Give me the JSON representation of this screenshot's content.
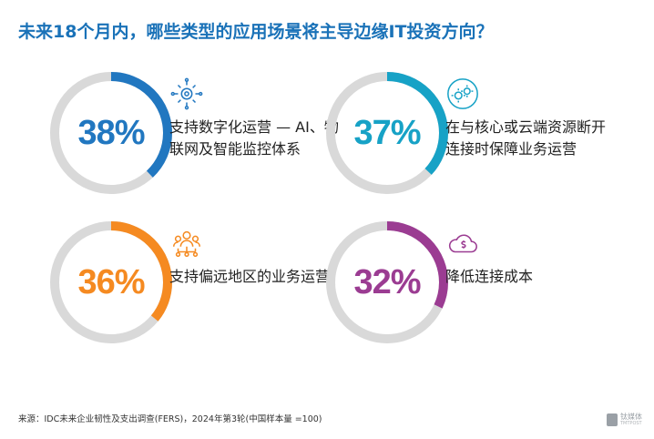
{
  "title": "未来18个月内，哪些类型的应用场景将主导边缘IT投资方向？",
  "colors": {
    "track": "#d9d9d9",
    "title": "#1a72b8"
  },
  "chart_data": {
    "type": "donut",
    "items": [
      {
        "value": 38,
        "display": "38%",
        "label": "支持数字化运营 — AI、物联网及智能监控体系",
        "color": "#2177c0",
        "icon": "gear-circuit-icon"
      },
      {
        "value": 37,
        "display": "37%",
        "label": "在与核心或云端资源断开连接时保障业务运营",
        "color": "#17a2c6",
        "icon": "cloud-gears-icon"
      },
      {
        "value": 36,
        "display": "36%",
        "label": "支持偏远地区的业务运营",
        "color": "#f58a21",
        "icon": "team-network-icon"
      },
      {
        "value": 32,
        "display": "32%",
        "label": "降低连接成本",
        "color": "#9b3c92",
        "icon": "cloud-dollar-icon"
      }
    ]
  },
  "footer": "来源：IDC未来企业韧性及支出调查(FERS)，2024年第3轮(中国样本量 =100)",
  "watermark": {
    "text": "钛媒体",
    "sub": "TMTPOST"
  }
}
